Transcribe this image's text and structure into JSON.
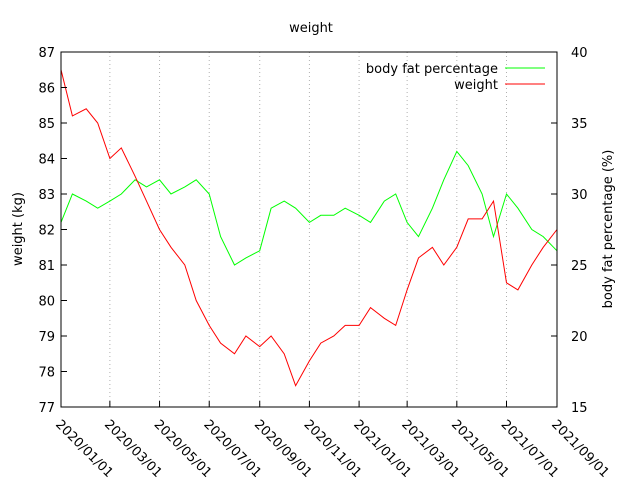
{
  "chart_data": {
    "type": "line",
    "title": "weight",
    "ylabel": "weight (kg)",
    "y2label": "body fat percentage (%)",
    "xlabel": "",
    "x_ticks": [
      "2020/01/01",
      "2020/03/01",
      "2020/05/01",
      "2020/07/01",
      "2020/09/01",
      "2020/11/01",
      "2021/01/01",
      "2021/03/01",
      "2021/05/01",
      "2021/07/01",
      "2021/09/01"
    ],
    "xlim": [
      "2020/01/01",
      "2021/09/01"
    ],
    "ylim": [
      77,
      87
    ],
    "y_ticks": [
      "77",
      "78",
      "79",
      "80",
      "81",
      "82",
      "83",
      "84",
      "85",
      "86",
      "87"
    ],
    "y2lim": [
      15,
      40
    ],
    "y2_ticks": [
      "15",
      "20",
      "25",
      "30",
      "35",
      "40"
    ],
    "grid": "vertical dotted at x ticks",
    "legend_position": "top-right",
    "series": [
      {
        "name": "body fat percentage",
        "axis": "right",
        "color": "#00ff00",
        "points": [
          [
            "2020/01/01",
            28
          ],
          [
            "2020/01/15",
            30
          ],
          [
            "2020/02/01",
            29.5
          ],
          [
            "2020/02/15",
            29
          ],
          [
            "2020/03/01",
            29.5
          ],
          [
            "2020/03/15",
            30
          ],
          [
            "2020/04/01",
            31
          ],
          [
            "2020/04/15",
            30.5
          ],
          [
            "2020/05/01",
            31
          ],
          [
            "2020/05/15",
            30
          ],
          [
            "2020/06/01",
            30.5
          ],
          [
            "2020/06/15",
            31
          ],
          [
            "2020/07/01",
            30
          ],
          [
            "2020/07/15",
            27
          ],
          [
            "2020/08/01",
            25
          ],
          [
            "2020/08/15",
            25.5
          ],
          [
            "2020/09/01",
            26
          ],
          [
            "2020/09/15",
            29
          ],
          [
            "2020/10/01",
            29.5
          ],
          [
            "2020/10/15",
            29
          ],
          [
            "2020/11/01",
            28
          ],
          [
            "2020/11/15",
            28.5
          ],
          [
            "2020/12/01",
            28.5
          ],
          [
            "2020/12/15",
            29
          ],
          [
            "2021/01/01",
            28.5
          ],
          [
            "2021/01/15",
            28
          ],
          [
            "2021/02/01",
            29.5
          ],
          [
            "2021/02/15",
            30
          ],
          [
            "2021/03/01",
            28
          ],
          [
            "2021/03/15",
            27
          ],
          [
            "2021/04/01",
            29
          ],
          [
            "2021/04/15",
            31
          ],
          [
            "2021/05/01",
            33
          ],
          [
            "2021/05/15",
            32
          ],
          [
            "2021/06/01",
            30
          ],
          [
            "2021/06/15",
            27
          ],
          [
            "2021/07/01",
            30
          ],
          [
            "2021/07/15",
            29
          ],
          [
            "2021/08/01",
            27.5
          ],
          [
            "2021/08/15",
            27
          ],
          [
            "2021/09/01",
            26
          ]
        ]
      },
      {
        "name": "weight",
        "axis": "left",
        "color": "#ff0000",
        "points": [
          [
            "2020/01/01",
            86.5
          ],
          [
            "2020/01/15",
            85.2
          ],
          [
            "2020/02/01",
            85.4
          ],
          [
            "2020/02/15",
            85.0
          ],
          [
            "2020/03/01",
            84.0
          ],
          [
            "2020/03/15",
            84.3
          ],
          [
            "2020/04/01",
            83.5
          ],
          [
            "2020/04/15",
            82.8
          ],
          [
            "2020/05/01",
            82.0
          ],
          [
            "2020/05/15",
            81.5
          ],
          [
            "2020/06/01",
            81.0
          ],
          [
            "2020/06/15",
            80.0
          ],
          [
            "2020/07/01",
            79.3
          ],
          [
            "2020/07/15",
            78.8
          ],
          [
            "2020/08/01",
            78.5
          ],
          [
            "2020/08/15",
            79.0
          ],
          [
            "2020/09/01",
            78.7
          ],
          [
            "2020/09/15",
            79.0
          ],
          [
            "2020/10/01",
            78.5
          ],
          [
            "2020/10/15",
            77.6
          ],
          [
            "2020/11/01",
            78.3
          ],
          [
            "2020/11/15",
            78.8
          ],
          [
            "2020/12/01",
            79.0
          ],
          [
            "2020/12/15",
            79.3
          ],
          [
            "2021/01/01",
            79.3
          ],
          [
            "2021/01/15",
            79.8
          ],
          [
            "2021/02/01",
            79.5
          ],
          [
            "2021/02/15",
            79.3
          ],
          [
            "2021/03/01",
            80.3
          ],
          [
            "2021/03/15",
            81.2
          ],
          [
            "2021/04/01",
            81.5
          ],
          [
            "2021/04/15",
            81.0
          ],
          [
            "2021/05/01",
            81.5
          ],
          [
            "2021/05/15",
            82.3
          ],
          [
            "2021/06/01",
            82.3
          ],
          [
            "2021/06/15",
            82.8
          ],
          [
            "2021/07/01",
            80.5
          ],
          [
            "2021/07/15",
            80.3
          ],
          [
            "2021/08/01",
            81.0
          ],
          [
            "2021/08/15",
            81.5
          ],
          [
            "2021/09/01",
            82.0
          ]
        ]
      }
    ]
  }
}
